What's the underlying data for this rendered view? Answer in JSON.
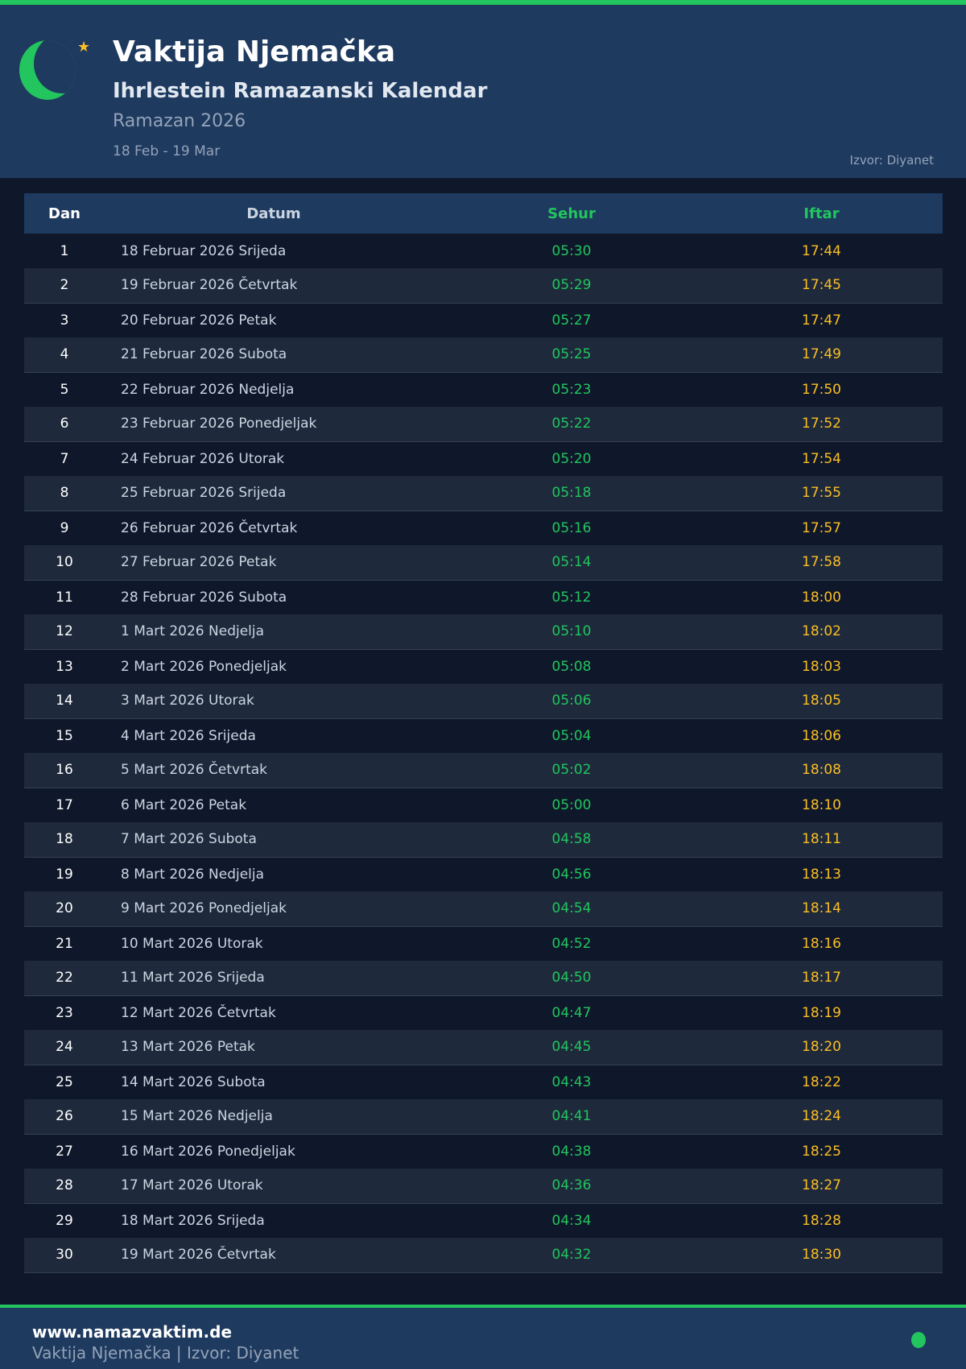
{
  "header": {
    "title": "Vaktija Njemačka",
    "subtitle": "Ihrlestein Ramazanski Kalendar",
    "ramazan": "Ramazan 2026",
    "range": "18 Feb - 19 Mar",
    "source": "Izvor: Diyanet"
  },
  "colors": {
    "accent": "#22c55e",
    "iftar": "#fbbf24",
    "header_bg": "#1e3a5f",
    "page_bg": "#0f172a"
  },
  "table": {
    "columns": [
      "Dan",
      "Datum",
      "Sehur",
      "Iftar"
    ],
    "rows": [
      [
        "1",
        "18 Februar 2026 Srijeda",
        "05:30",
        "17:44"
      ],
      [
        "2",
        "19 Februar 2026 Četvrtak",
        "05:29",
        "17:45"
      ],
      [
        "3",
        "20 Februar 2026 Petak",
        "05:27",
        "17:47"
      ],
      [
        "4",
        "21 Februar 2026 Subota",
        "05:25",
        "17:49"
      ],
      [
        "5",
        "22 Februar 2026 Nedjelja",
        "05:23",
        "17:50"
      ],
      [
        "6",
        "23 Februar 2026 Ponedjeljak",
        "05:22",
        "17:52"
      ],
      [
        "7",
        "24 Februar 2026 Utorak",
        "05:20",
        "17:54"
      ],
      [
        "8",
        "25 Februar 2026 Srijeda",
        "05:18",
        "17:55"
      ],
      [
        "9",
        "26 Februar 2026 Četvrtak",
        "05:16",
        "17:57"
      ],
      [
        "10",
        "27 Februar 2026 Petak",
        "05:14",
        "17:58"
      ],
      [
        "11",
        "28 Februar 2026 Subota",
        "05:12",
        "18:00"
      ],
      [
        "12",
        "1 Mart 2026 Nedjelja",
        "05:10",
        "18:02"
      ],
      [
        "13",
        "2 Mart 2026 Ponedjeljak",
        "05:08",
        "18:03"
      ],
      [
        "14",
        "3 Mart 2026 Utorak",
        "05:06",
        "18:05"
      ],
      [
        "15",
        "4 Mart 2026 Srijeda",
        "05:04",
        "18:06"
      ],
      [
        "16",
        "5 Mart 2026 Četvrtak",
        "05:02",
        "18:08"
      ],
      [
        "17",
        "6 Mart 2026 Petak",
        "05:00",
        "18:10"
      ],
      [
        "18",
        "7 Mart 2026 Subota",
        "04:58",
        "18:11"
      ],
      [
        "19",
        "8 Mart 2026 Nedjelja",
        "04:56",
        "18:13"
      ],
      [
        "20",
        "9 Mart 2026 Ponedjeljak",
        "04:54",
        "18:14"
      ],
      [
        "21",
        "10 Mart 2026 Utorak",
        "04:52",
        "18:16"
      ],
      [
        "22",
        "11 Mart 2026 Srijeda",
        "04:50",
        "18:17"
      ],
      [
        "23",
        "12 Mart 2026 Četvrtak",
        "04:47",
        "18:19"
      ],
      [
        "24",
        "13 Mart 2026 Petak",
        "04:45",
        "18:20"
      ],
      [
        "25",
        "14 Mart 2026 Subota",
        "04:43",
        "18:22"
      ],
      [
        "26",
        "15 Mart 2026 Nedjelja",
        "04:41",
        "18:24"
      ],
      [
        "27",
        "16 Mart 2026 Ponedjeljak",
        "04:38",
        "18:25"
      ],
      [
        "28",
        "17 Mart 2026 Utorak",
        "04:36",
        "18:27"
      ],
      [
        "29",
        "18 Mart 2026 Srijeda",
        "04:34",
        "18:28"
      ],
      [
        "30",
        "19 Mart 2026 Četvrtak",
        "04:32",
        "18:30"
      ]
    ]
  },
  "footer": {
    "site": "www.namazvaktim.de",
    "text": "Vaktija Njemačka | Izvor: Diyanet"
  }
}
